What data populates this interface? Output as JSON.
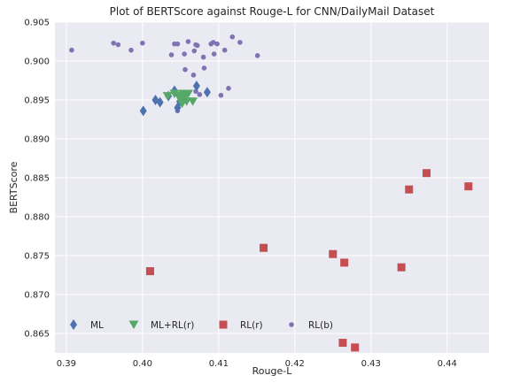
{
  "chart_data": {
    "type": "scatter",
    "title": "Plot of BERTScore against Rouge-L for CNN/DailyMail Dataset",
    "xlabel": "Rouge-L",
    "ylabel": "BERTScore",
    "xlim": [
      0.3885,
      0.4455
    ],
    "ylim": [
      0.8625,
      0.905
    ],
    "xticks": [
      0.39,
      0.4,
      0.41,
      0.42,
      0.43,
      0.44
    ],
    "xtick_labels": [
      "0.39",
      "0.40",
      "0.41",
      "0.42",
      "0.43",
      "0.44"
    ],
    "yticks": [
      0.865,
      0.87,
      0.875,
      0.88,
      0.885,
      0.89,
      0.895,
      0.9,
      0.905
    ],
    "ytick_labels": [
      "0.865",
      "0.870",
      "0.875",
      "0.880",
      "0.885",
      "0.890",
      "0.895",
      "0.900",
      "0.905"
    ],
    "grid": true,
    "legend": "bottom, single row inside axes",
    "series": [
      {
        "name": "ML",
        "marker": "diamond",
        "color": "#4c72b0",
        "points": [
          [
            0.4001,
            0.8936
          ],
          [
            0.4017,
            0.895
          ],
          [
            0.4023,
            0.8947
          ],
          [
            0.4034,
            0.8955
          ],
          [
            0.4042,
            0.8962
          ],
          [
            0.4046,
            0.894
          ],
          [
            0.4054,
            0.8955
          ],
          [
            0.4071,
            0.8968
          ],
          [
            0.4085,
            0.896
          ],
          [
            0.4049,
            0.8948
          ]
        ]
      },
      {
        "name": "ML+RL(r)",
        "marker": "triangle-down",
        "color": "#55a868",
        "points": [
          [
            0.4033,
            0.8955
          ],
          [
            0.4042,
            0.8958
          ],
          [
            0.4047,
            0.8955
          ],
          [
            0.405,
            0.895
          ],
          [
            0.4053,
            0.8958
          ],
          [
            0.4055,
            0.8953
          ],
          [
            0.4058,
            0.8948
          ],
          [
            0.406,
            0.8958
          ],
          [
            0.4066,
            0.8948
          ],
          [
            0.4052,
            0.8945
          ]
        ]
      },
      {
        "name": "RL(r)",
        "marker": "square",
        "color": "#c44e52",
        "points": [
          [
            0.401,
            0.873
          ],
          [
            0.4159,
            0.876
          ],
          [
            0.425,
            0.8752
          ],
          [
            0.4265,
            0.8741
          ],
          [
            0.4263,
            0.8638
          ],
          [
            0.4279,
            0.8632
          ],
          [
            0.434,
            0.8735
          ],
          [
            0.435,
            0.8835
          ],
          [
            0.4373,
            0.8856
          ],
          [
            0.4428,
            0.8839
          ]
        ]
      },
      {
        "name": "RL(b)",
        "marker": "circle",
        "color": "#8172b2",
        "points": [
          [
            0.3907,
            0.9014
          ],
          [
            0.3962,
            0.9023
          ],
          [
            0.3968,
            0.9021
          ],
          [
            0.3985,
            0.9014
          ],
          [
            0.4,
            0.9023
          ],
          [
            0.4038,
            0.9008
          ],
          [
            0.4042,
            0.9022
          ],
          [
            0.4046,
            0.9022
          ],
          [
            0.4055,
            0.9009
          ],
          [
            0.406,
            0.9025
          ],
          [
            0.4068,
            0.9013
          ],
          [
            0.407,
            0.9021
          ],
          [
            0.4072,
            0.902
          ],
          [
            0.408,
            0.9005
          ],
          [
            0.409,
            0.9022
          ],
          [
            0.4093,
            0.9024
          ],
          [
            0.4094,
            0.9009
          ],
          [
            0.4098,
            0.9022
          ],
          [
            0.4108,
            0.9014
          ],
          [
            0.4118,
            0.9031
          ],
          [
            0.4128,
            0.9024
          ],
          [
            0.4151,
            0.9007
          ],
          [
            0.4056,
            0.8989
          ],
          [
            0.4067,
            0.8982
          ],
          [
            0.4081,
            0.8991
          ],
          [
            0.407,
            0.8961
          ],
          [
            0.4075,
            0.8957
          ],
          [
            0.4103,
            0.8956
          ],
          [
            0.4113,
            0.8965
          ],
          [
            0.4046,
            0.8936
          ]
        ]
      }
    ]
  }
}
